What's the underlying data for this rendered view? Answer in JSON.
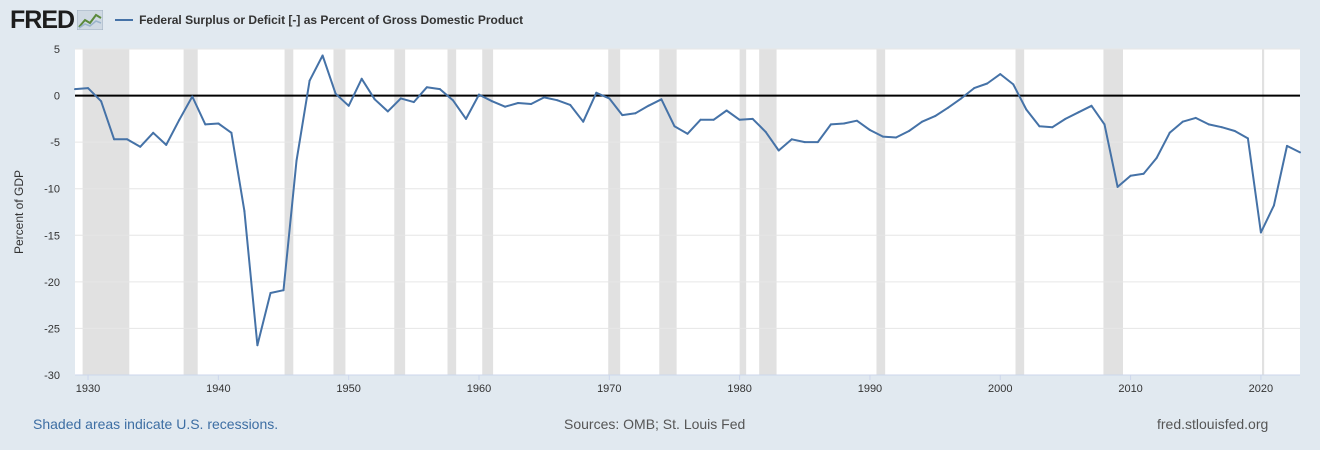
{
  "header": {
    "logo_text": "FRED",
    "logo_icon": "line-chart-icon",
    "legend_label": "Federal Surplus or Deficit [-] as Percent of Gross Domestic Product"
  },
  "footer": {
    "recession_note": "Shaded areas indicate U.S. recessions.",
    "sources": "Sources: OMB; St. Louis Fed",
    "site": "fred.stlouisfed.org"
  },
  "colors": {
    "background": "#e1e9f0",
    "plot_background": "#ffffff",
    "series": "#4572a7",
    "recession_shade": "#e1e1e1",
    "zero_line": "#000000"
  },
  "chart_data": {
    "type": "line",
    "ylabel": "Percent of GDP",
    "xlim": [
      1929,
      2023
    ],
    "ylim": [
      -30,
      5
    ],
    "yticks": [
      5,
      0,
      -5,
      -10,
      -15,
      -20,
      -25,
      -30
    ],
    "xticks": [
      1930,
      1940,
      1950,
      1960,
      1970,
      1980,
      1990,
      2000,
      2010,
      2020
    ],
    "grid": true,
    "reference_line": 0,
    "recessions": [
      [
        "1929-08",
        "1933-03"
      ],
      [
        "1937-05",
        "1938-06"
      ],
      [
        "1945-02",
        "1945-10"
      ],
      [
        "1948-11",
        "1949-10"
      ],
      [
        "1953-07",
        "1954-05"
      ],
      [
        "1957-08",
        "1958-04"
      ],
      [
        "1960-04",
        "1961-02"
      ],
      [
        "1969-12",
        "1970-11"
      ],
      [
        "1973-11",
        "1975-03"
      ],
      [
        "1980-01",
        "1980-07"
      ],
      [
        "1981-07",
        "1982-11"
      ],
      [
        "1990-07",
        "1991-03"
      ],
      [
        "2001-03",
        "2001-11"
      ],
      [
        "2007-12",
        "2009-06"
      ],
      [
        "2020-02",
        "2020-04"
      ]
    ],
    "series": [
      {
        "name": "Federal Surplus or Deficit [-] as Percent of Gross Domestic Product",
        "x": [
          1929,
          1930,
          1931,
          1932,
          1933,
          1934,
          1935,
          1936,
          1937,
          1938,
          1939,
          1940,
          1941,
          1942,
          1943,
          1944,
          1945,
          1946,
          1947,
          1948,
          1949,
          1950,
          1951,
          1952,
          1953,
          1954,
          1955,
          1956,
          1957,
          1958,
          1959,
          1960,
          1961,
          1962,
          1963,
          1964,
          1965,
          1966,
          1967,
          1968,
          1969,
          1970,
          1971,
          1972,
          1973,
          1974,
          1975,
          1976,
          1977,
          1978,
          1979,
          1980,
          1981,
          1982,
          1983,
          1984,
          1985,
          1986,
          1987,
          1988,
          1989,
          1990,
          1991,
          1992,
          1993,
          1994,
          1995,
          1996,
          1997,
          1998,
          1999,
          2000,
          2001,
          2002,
          2003,
          2004,
          2005,
          2006,
          2007,
          2008,
          2009,
          2010,
          2011,
          2012,
          2013,
          2014,
          2015,
          2016,
          2017,
          2018,
          2019,
          2020,
          2021,
          2022,
          2023
        ],
        "values": [
          0.7,
          0.8,
          -0.6,
          -4.7,
          -4.7,
          -5.5,
          -4.0,
          -5.3,
          -2.6,
          -0.1,
          -3.1,
          -3.0,
          -4.0,
          -12.4,
          -26.8,
          -21.2,
          -20.9,
          -7.0,
          1.6,
          4.3,
          0.2,
          -1.1,
          1.8,
          -0.4,
          -1.7,
          -0.3,
          -0.7,
          0.9,
          0.7,
          -0.5,
          -2.5,
          0.1,
          -0.6,
          -1.2,
          -0.8,
          -0.9,
          -0.2,
          -0.5,
          -1.0,
          -2.8,
          0.3,
          -0.3,
          -2.1,
          -1.9,
          -1.1,
          -0.4,
          -3.3,
          -4.1,
          -2.6,
          -2.6,
          -1.6,
          -2.6,
          -2.5,
          -3.9,
          -5.9,
          -4.7,
          -5.0,
          -5.0,
          -3.1,
          -3.0,
          -2.7,
          -3.7,
          -4.4,
          -4.5,
          -3.8,
          -2.8,
          -2.2,
          -1.3,
          -0.3,
          0.8,
          1.3,
          2.3,
          1.2,
          -1.5,
          -3.3,
          -3.4,
          -2.5,
          -1.8,
          -1.1,
          -3.1,
          -9.8,
          -8.6,
          -8.4,
          -6.7,
          -4.0,
          -2.8,
          -2.4,
          -3.1,
          -3.4,
          -3.8,
          -4.6,
          -14.7,
          -11.8,
          -5.4,
          -6.1
        ]
      }
    ]
  }
}
